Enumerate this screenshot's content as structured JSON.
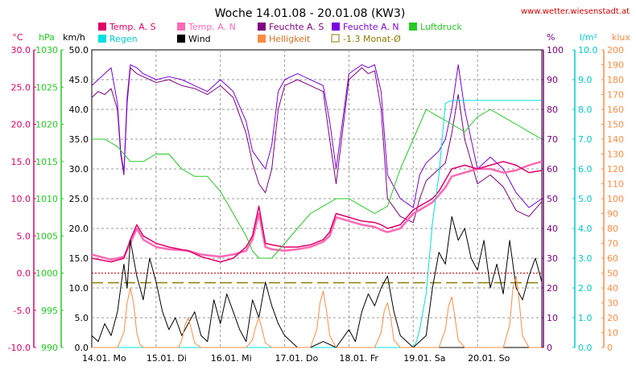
{
  "chart_data": {
    "type": "line",
    "title": "Woche 14.01.08 - 20.01.08 (KW3)",
    "source": "www.wetter.wiesenstadt.at",
    "legend": [
      {
        "label": "Temp. A. S",
        "color": "#e0006a",
        "style": "box"
      },
      {
        "label": "Temp. A. N",
        "color": "#ff69b4",
        "style": "box"
      },
      {
        "label": "Feuchte A. S",
        "color": "#800080",
        "style": "box"
      },
      {
        "label": "Feuchte A. N",
        "color": "#7a00e0",
        "style": "box"
      },
      {
        "label": "Luftdruck",
        "color": "#22cc22",
        "style": "box"
      },
      {
        "label": "Regen",
        "color": "#00e0e0",
        "style": "box"
      },
      {
        "label": "Wind",
        "color": "#000000",
        "style": "box"
      },
      {
        "label": "Helligkeit",
        "color": "#ff8c42",
        "style": "box"
      },
      {
        "label": "-1.3 Monat-Ø",
        "color": "#8b7d00",
        "style": "outline"
      }
    ],
    "axes": [
      {
        "unit": "°C",
        "color": "#e0006a",
        "side": "left",
        "min": -10,
        "max": 30,
        "ticks": [
          "-10.0",
          "-5.0",
          "0.0",
          "5.0",
          "10.0",
          "15.0",
          "20.0",
          "25.0",
          "30.0"
        ]
      },
      {
        "unit": "hPa",
        "color": "#22cc22",
        "side": "left",
        "min": 990,
        "max": 1030,
        "ticks": [
          "990",
          "995",
          "1000",
          "1005",
          "1010",
          "1015",
          "1020",
          "1025",
          "1030"
        ]
      },
      {
        "unit": "km/h",
        "color": "#000000",
        "side": "left",
        "min": 0,
        "max": 50,
        "ticks": [
          "0.0",
          "5.0",
          "10.0",
          "15.0",
          "20.0",
          "25.0",
          "30.0",
          "35.0",
          "40.0",
          "45.0",
          "50.0"
        ]
      },
      {
        "unit": "%",
        "color": "#800080",
        "side": "right",
        "min": 0,
        "max": 100,
        "ticks": [
          "0",
          "10",
          "20",
          "30",
          "40",
          "50",
          "60",
          "70",
          "80",
          "90",
          "100"
        ]
      },
      {
        "unit": "l/m²",
        "color": "#00cccc",
        "side": "right",
        "min": 0,
        "max": 10,
        "ticks": [
          "0.0",
          "1.0",
          "2.0",
          "3.0",
          "4.0",
          "5.0",
          "6.0",
          "7.0",
          "8.0",
          "9.0",
          "10.0"
        ]
      },
      {
        "unit": "klux",
        "color": "#ff8c42",
        "side": "right",
        "min": 0,
        "max": 200,
        "ticks": [
          "0",
          "10",
          "20",
          "30",
          "40",
          "50",
          "60",
          "70",
          "80",
          "90",
          "100",
          "110",
          "120",
          "130",
          "140",
          "150",
          "160",
          "170",
          "180",
          "190",
          "200"
        ]
      }
    ],
    "x_labels": [
      "14.01. Mo",
      "15.01. Di",
      "16.01. Mi",
      "17.01. Do",
      "18.01. Fr",
      "19.01. Sa",
      "20.01. So"
    ],
    "x_range_days": [
      0,
      7
    ],
    "reference_lines": [
      {
        "name": "frost",
        "axis": "°C",
        "value": 0,
        "color": "#cc0000",
        "style": "dotted"
      },
      {
        "name": "Monat-Ø",
        "axis": "°C",
        "value": -1.3,
        "color": "#8b7d00",
        "style": "dashed"
      }
    ],
    "series": [
      {
        "name": "Feuchte A. S",
        "axis": "%",
        "color": "#800080",
        "x": [
          0,
          0.1,
          0.2,
          0.3,
          0.4,
          0.45,
          0.5,
          0.55,
          0.6,
          0.7,
          0.8,
          1.0,
          1.2,
          1.4,
          1.6,
          1.8,
          2.0,
          2.2,
          2.4,
          2.5,
          2.6,
          2.7,
          2.8,
          2.9,
          3.0,
          3.2,
          3.4,
          3.6,
          3.7,
          3.8,
          4.0,
          4.2,
          4.3,
          4.4,
          4.5,
          4.6,
          4.8,
          5.0,
          5.1,
          5.2,
          5.3,
          5.4,
          5.5,
          5.6,
          5.7,
          5.8,
          6.0,
          6.2,
          6.4,
          6.6,
          6.8,
          7.0
        ],
        "y": [
          84,
          86,
          85,
          87,
          80,
          65,
          58,
          82,
          94,
          92,
          91,
          89,
          90,
          88,
          87,
          85,
          88,
          84,
          72,
          62,
          55,
          52,
          60,
          80,
          88,
          90,
          88,
          86,
          70,
          55,
          90,
          94,
          92,
          93,
          80,
          50,
          44,
          42,
          50,
          56,
          58,
          60,
          62,
          72,
          85,
          70,
          55,
          58,
          54,
          46,
          44,
          49
        ]
      },
      {
        "name": "Feuchte A. N",
        "axis": "%",
        "color": "#7a00e0",
        "x": [
          0,
          0.1,
          0.2,
          0.3,
          0.4,
          0.45,
          0.5,
          0.55,
          0.6,
          0.7,
          0.8,
          1.0,
          1.2,
          1.4,
          1.6,
          1.8,
          2.0,
          2.2,
          2.4,
          2.5,
          2.6,
          2.7,
          2.8,
          2.9,
          3.0,
          3.2,
          3.4,
          3.6,
          3.7,
          3.8,
          4.0,
          4.2,
          4.3,
          4.4,
          4.5,
          4.6,
          4.8,
          5.0,
          5.1,
          5.2,
          5.3,
          5.4,
          5.5,
          5.6,
          5.7,
          5.8,
          6.0,
          6.2,
          6.4,
          6.6,
          6.8,
          7.0
        ],
        "y": [
          88,
          90,
          92,
          94,
          82,
          66,
          59,
          84,
          95,
          94,
          92,
          90,
          91,
          90,
          88,
          86,
          90,
          86,
          76,
          66,
          63,
          60,
          68,
          86,
          90,
          92,
          90,
          88,
          76,
          60,
          92,
          95,
          94,
          95,
          86,
          58,
          50,
          47,
          58,
          62,
          64,
          66,
          70,
          80,
          95,
          80,
          60,
          64,
          60,
          52,
          47,
          50
        ]
      },
      {
        "name": "Temp. A. N",
        "axis": "°C",
        "color": "#ff69b4",
        "x": [
          0,
          0.3,
          0.5,
          0.6,
          0.7,
          0.8,
          1.0,
          1.2,
          1.5,
          1.7,
          2.0,
          2.2,
          2.4,
          2.5,
          2.6,
          2.7,
          2.8,
          3.0,
          3.2,
          3.4,
          3.6,
          3.7,
          3.8,
          4.0,
          4.2,
          4.4,
          4.5,
          4.6,
          4.8,
          5.0,
          5.2,
          5.3,
          5.4,
          5.5,
          5.6,
          5.8,
          6.0,
          6.2,
          6.4,
          6.6,
          6.8,
          7.0
        ],
        "y": [
          2.5,
          1.8,
          2.2,
          4.0,
          6.0,
          4.5,
          3.5,
          3.2,
          3.0,
          2.5,
          2.2,
          2.5,
          3.0,
          4.5,
          8.0,
          3.5,
          3.2,
          3.0,
          3.2,
          3.5,
          4.2,
          5.0,
          7.5,
          7.0,
          6.5,
          6.2,
          5.8,
          5.5,
          6.0,
          8.0,
          9.0,
          9.5,
          10.5,
          11.5,
          13.0,
          13.5,
          14.0,
          14.0,
          13.5,
          13.8,
          14.5,
          15.0
        ]
      },
      {
        "name": "Temp. A. S",
        "axis": "°C",
        "color": "#e0006a",
        "x": [
          0,
          0.3,
          0.5,
          0.6,
          0.7,
          0.8,
          1.0,
          1.2,
          1.5,
          1.7,
          2.0,
          2.2,
          2.4,
          2.5,
          2.6,
          2.7,
          2.8,
          3.0,
          3.2,
          3.4,
          3.6,
          3.7,
          3.8,
          4.0,
          4.2,
          4.4,
          4.5,
          4.6,
          4.8,
          5.0,
          5.2,
          5.3,
          5.4,
          5.5,
          5.6,
          5.8,
          6.0,
          6.2,
          6.4,
          6.6,
          6.8,
          7.0
        ],
        "y": [
          2.0,
          1.5,
          2.0,
          4.5,
          6.5,
          5.0,
          4.0,
          3.5,
          3.0,
          2.2,
          1.5,
          2.0,
          3.5,
          5.0,
          9.0,
          4.0,
          3.8,
          3.5,
          3.5,
          3.8,
          4.5,
          5.5,
          8.0,
          7.5,
          7.0,
          6.8,
          6.5,
          6.0,
          6.5,
          8.5,
          9.5,
          10.0,
          11.0,
          12.5,
          14.0,
          14.5,
          14.0,
          14.5,
          15.0,
          14.5,
          13.5,
          13.8
        ]
      },
      {
        "name": "Luftdruck",
        "axis": "hPa",
        "color": "#22cc22",
        "x": [
          0,
          0.2,
          0.4,
          0.5,
          0.6,
          0.8,
          1.0,
          1.2,
          1.4,
          1.6,
          1.8,
          2.0,
          2.2,
          2.4,
          2.5,
          2.6,
          2.7,
          2.8,
          3.0,
          3.2,
          3.4,
          3.6,
          3.8,
          4.0,
          4.2,
          4.4,
          4.6,
          4.8,
          5.0,
          5.2,
          5.4,
          5.6,
          5.8,
          6.0,
          6.2,
          6.4,
          6.6,
          6.8,
          7.0
        ],
        "y": [
          1018,
          1018,
          1017,
          1016,
          1015,
          1015,
          1016,
          1016,
          1014,
          1013,
          1013,
          1011,
          1008,
          1005,
          1003,
          1002,
          1002,
          1002,
          1004,
          1006,
          1008,
          1009,
          1010,
          1010,
          1009,
          1008,
          1009,
          1014,
          1018,
          1022,
          1021,
          1020,
          1019,
          1021,
          1022,
          1021,
          1020,
          1019,
          1018
        ]
      },
      {
        "name": "Regen",
        "axis": "l/m²",
        "color": "#00e0e0",
        "x": [
          0,
          5.0,
          5.05,
          5.1,
          5.2,
          5.25,
          5.3,
          5.4,
          5.45,
          5.5,
          5.6,
          7.0
        ],
        "y": [
          0,
          0,
          0.2,
          0.6,
          1.8,
          3.0,
          4.2,
          5.8,
          7.0,
          8.2,
          8.3,
          8.3
        ]
      },
      {
        "name": "Wind",
        "axis": "km/h",
        "color": "#000000",
        "x": [
          0,
          0.1,
          0.2,
          0.3,
          0.4,
          0.5,
          0.55,
          0.6,
          0.7,
          0.8,
          0.9,
          1.0,
          1.1,
          1.2,
          1.3,
          1.4,
          1.5,
          1.6,
          1.7,
          1.8,
          1.9,
          2.0,
          2.1,
          2.2,
          2.3,
          2.4,
          2.5,
          2.6,
          2.7,
          2.8,
          2.9,
          3.0,
          3.2,
          3.4,
          3.6,
          3.8,
          4.0,
          4.1,
          4.2,
          4.3,
          4.4,
          4.5,
          4.6,
          4.7,
          4.8,
          4.9,
          5.0,
          5.2,
          5.3,
          5.4,
          5.5,
          5.6,
          5.7,
          5.8,
          5.9,
          6.0,
          6.1,
          6.2,
          6.3,
          6.4,
          6.5,
          6.6,
          6.7,
          6.8,
          6.9,
          7.0
        ],
        "y": [
          2,
          1,
          4,
          2,
          6,
          14,
          10,
          18,
          12,
          8,
          15,
          11,
          6,
          3,
          5,
          2,
          4,
          6,
          2,
          1,
          8,
          4,
          9,
          6,
          3,
          1,
          8,
          5,
          11,
          7,
          4,
          2,
          0,
          0,
          1,
          0,
          3,
          1,
          6,
          9,
          7,
          10,
          12,
          6,
          2,
          1,
          0,
          2,
          10,
          16,
          14,
          22,
          18,
          20,
          15,
          13,
          18,
          10,
          14,
          9,
          18,
          10,
          8,
          12,
          15,
          11
        ]
      },
      {
        "name": "Helligkeit",
        "axis": "klux",
        "color": "#ff8c42",
        "x": [
          0,
          0.4,
          0.5,
          0.55,
          0.6,
          0.65,
          0.7,
          0.75,
          0.8,
          1.0,
          1.35,
          1.4,
          1.45,
          1.5,
          1.55,
          1.6,
          1.7,
          2.0,
          2.4,
          2.5,
          2.55,
          2.6,
          2.65,
          2.7,
          2.8,
          3.0,
          3.4,
          3.5,
          3.55,
          3.6,
          3.65,
          3.7,
          3.8,
          4.0,
          4.4,
          4.5,
          4.55,
          4.6,
          4.65,
          4.7,
          4.8,
          5.0,
          5.4,
          5.5,
          5.55,
          5.6,
          5.65,
          5.7,
          5.8,
          6.0,
          6.4,
          6.5,
          6.55,
          6.6,
          6.65,
          6.7,
          6.8,
          7.0
        ],
        "y": [
          0,
          0,
          10,
          30,
          40,
          30,
          10,
          2,
          0,
          0,
          0,
          5,
          15,
          20,
          12,
          3,
          0,
          0,
          0,
          5,
          14,
          20,
          12,
          3,
          0,
          0,
          0,
          12,
          30,
          38,
          25,
          8,
          0,
          0,
          0,
          10,
          25,
          30,
          20,
          5,
          0,
          0,
          0,
          12,
          28,
          34,
          20,
          5,
          0,
          0,
          0,
          15,
          40,
          48,
          30,
          8,
          0,
          0
        ]
      }
    ]
  }
}
